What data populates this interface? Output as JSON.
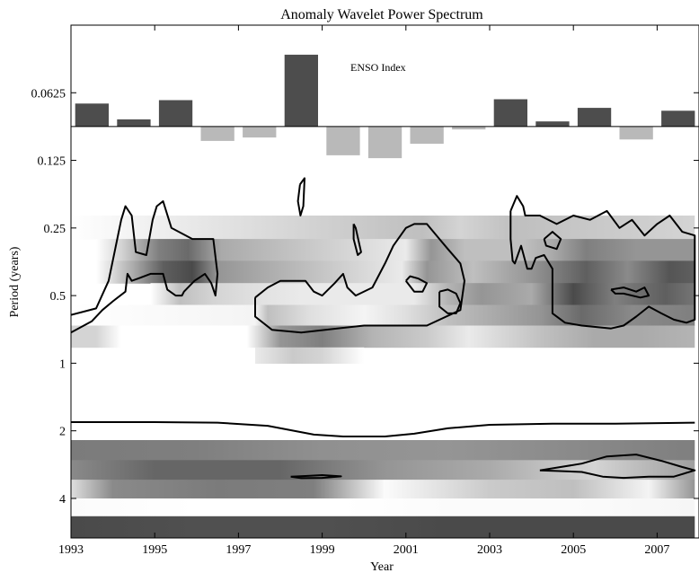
{
  "chart_data": {
    "type": "heatmap",
    "title": "Anomaly Wavelet Power Spectrum",
    "xlabel": "Year",
    "ylabel": "Period (years)",
    "xlim": [
      1993,
      2008
    ],
    "ylim": [
      0.03125,
      6
    ],
    "y_scale": "log2",
    "y_inverted": true,
    "x_ticks": [
      "1993",
      "1995",
      "1997",
      "1999",
      "2001",
      "2003",
      "2005",
      "2007"
    ],
    "x_tick_values": [
      1993,
      1995,
      1997,
      1999,
      2001,
      2003,
      2005,
      2007
    ],
    "y_ticks": [
      "0.0625",
      "0.125",
      "0.25",
      "0.5",
      "1",
      "2",
      "4"
    ],
    "y_tick_values": [
      0.0625,
      0.125,
      0.25,
      0.5,
      1,
      2,
      4
    ],
    "colormap": [
      "#ffffff",
      "#2a2a2a"
    ],
    "inset_bar": {
      "label": "ENSO Index",
      "baseline_period": 0.0884,
      "positive_color": "#4d4d4d",
      "negative_color": "#b9b9b9",
      "years": [
        1993.5,
        1994.5,
        1995.5,
        1996.5,
        1997.5,
        1998.5,
        1999.5,
        2000.5,
        2001.5,
        2002.5,
        2003.5,
        2004.5,
        2005.5,
        2006.5,
        2007.5
      ],
      "values": [
        0.8,
        0.25,
        0.92,
        -0.5,
        -0.38,
        2.5,
        -1.0,
        -1.1,
        -0.6,
        -0.1,
        0.95,
        0.18,
        0.65,
        -0.45,
        0.55
      ]
    },
    "power_bands": [
      {
        "period": [
          0.22,
          0.28
        ],
        "x": [
          1993.0,
          1998.5,
          2001.4,
          2002.3,
          2003.6,
          2007.9
        ],
        "v": [
          0.0,
          0.2,
          0.3,
          0.2,
          0.3,
          0.2
        ]
      },
      {
        "period": [
          0.28,
          0.35
        ],
        "x": [
          1993.6,
          1994.2,
          1995.1,
          1995.8,
          1996.6,
          2001.0,
          2001.6,
          2002.4,
          2003.8,
          2004.5,
          2005.3,
          2006.5,
          2007.9
        ],
        "v": [
          0.0,
          0.2,
          0.6,
          0.7,
          0.4,
          0.1,
          0.5,
          0.3,
          0.3,
          0.4,
          0.6,
          0.5,
          0.5
        ]
      },
      {
        "period": [
          0.35,
          0.44
        ],
        "x": [
          1993.6,
          1994.5,
          1995.2,
          1995.9,
          1996.5,
          2000.9,
          2001.5,
          2002.6,
          2004.0,
          2005.3,
          2006.3,
          2007.3,
          2007.9
        ],
        "v": [
          0.0,
          0.4,
          0.75,
          0.85,
          0.5,
          0.1,
          0.5,
          0.3,
          0.5,
          0.75,
          0.55,
          0.8,
          0.75
        ]
      },
      {
        "period": [
          0.44,
          0.55
        ],
        "x": [
          1994.9,
          1995.6,
          1996.4,
          1997.3,
          1998.5,
          2001.2,
          2002.0,
          2002.8,
          2004.0,
          2005.0,
          2006.0,
          2007.2,
          2007.9
        ],
        "v": [
          0.0,
          0.3,
          0.2,
          0.15,
          0.1,
          0.1,
          0.35,
          0.5,
          0.4,
          0.85,
          0.6,
          0.75,
          0.65
        ]
      },
      {
        "period": [
          0.55,
          0.68
        ],
        "x": [
          1993.0,
          1997.4,
          1997.7,
          1998.7,
          2000.0,
          2001.0,
          2002.0,
          2004.2,
          2005.2,
          2006.4,
          2007.9
        ],
        "v": [
          0.0,
          0.05,
          0.3,
          0.15,
          0.05,
          0.15,
          0.3,
          0.5,
          0.7,
          0.55,
          0.6
        ]
      },
      {
        "period": [
          0.68,
          0.85
        ],
        "x": [
          1993.0,
          1993.6,
          1994.2,
          1997.2,
          1998.0,
          1999.0,
          2000.2,
          2001.5,
          2002.5,
          2004.3,
          2005.5,
          2006.6,
          2007.9
        ],
        "v": [
          0.2,
          0.2,
          0.0,
          0.0,
          0.5,
          0.6,
          0.35,
          0.25,
          0.1,
          0.3,
          0.4,
          0.4,
          0.35
        ]
      },
      {
        "period": [
          0.85,
          1.0
        ],
        "x": [
          1997.4,
          1998.3,
          1999.0,
          2000.0
        ],
        "v": [
          0.1,
          0.25,
          0.2,
          0.0
        ]
      },
      {
        "period": [
          2.2,
          2.7
        ],
        "x": [
          1993.0,
          1996.0,
          1999.0,
          2002.0,
          2005.0,
          2007.9
        ],
        "v": [
          0.62,
          0.6,
          0.52,
          0.5,
          0.55,
          0.6
        ]
      },
      {
        "period": [
          2.7,
          3.3
        ],
        "x": [
          1993.0,
          1995.0,
          1998.0,
          2000.5,
          2003.0,
          2005.5,
          2007.9
        ],
        "v": [
          0.55,
          0.72,
          0.72,
          0.5,
          0.4,
          0.2,
          0.45
        ]
      },
      {
        "period": [
          3.3,
          4.0
        ],
        "x": [
          1993.0,
          1994.0,
          1996.5,
          1998.8,
          2000.5,
          2003.0,
          2005.0,
          2006.8,
          2007.9
        ],
        "v": [
          0.15,
          0.55,
          0.62,
          0.6,
          0.02,
          0.25,
          0.3,
          0.05,
          0.5
        ]
      },
      {
        "period": [
          4.0,
          4.8
        ],
        "x": [
          1993.0,
          1996.0,
          1999.5,
          2002.0,
          2005.0,
          2007.9
        ],
        "v": [
          0.02,
          0.0,
          0.0,
          0.02,
          0.02,
          0.04
        ]
      },
      {
        "period": [
          4.8,
          6.0
        ],
        "x": [
          1993.0,
          1996.0,
          1999.0,
          2002.0,
          2005.0,
          2007.9
        ],
        "v": [
          0.85,
          0.82,
          0.82,
          0.85,
          0.85,
          0.85
        ]
      }
    ],
    "significance_contours": [
      [
        [
          1993.0,
          0.61
        ],
        [
          1993.6,
          0.57
        ],
        [
          1993.9,
          0.43
        ],
        [
          1994.2,
          0.23
        ],
        [
          1994.3,
          0.2
        ],
        [
          1994.45,
          0.22
        ],
        [
          1994.55,
          0.32
        ],
        [
          1994.8,
          0.33
        ],
        [
          1994.95,
          0.23
        ],
        [
          1995.05,
          0.2
        ],
        [
          1995.2,
          0.19
        ],
        [
          1995.4,
          0.25
        ],
        [
          1995.9,
          0.28
        ],
        [
          1996.4,
          0.28
        ],
        [
          1996.5,
          0.4
        ],
        [
          1996.45,
          0.5
        ],
        [
          1996.35,
          0.44
        ],
        [
          1996.2,
          0.4
        ],
        [
          1995.95,
          0.43
        ],
        [
          1995.7,
          0.48
        ],
        [
          1995.65,
          0.5
        ],
        [
          1995.5,
          0.5
        ],
        [
          1995.3,
          0.47
        ],
        [
          1995.2,
          0.4
        ],
        [
          1994.9,
          0.4
        ],
        [
          1994.6,
          0.42
        ],
        [
          1994.45,
          0.43
        ],
        [
          1994.35,
          0.4
        ],
        [
          1994.3,
          0.48
        ],
        [
          1994.0,
          0.53
        ],
        [
          1993.75,
          0.58
        ],
        [
          1993.5,
          0.65
        ],
        [
          1993.0,
          0.73
        ]
      ],
      [
        [
          1998.47,
          0.16
        ],
        [
          1998.58,
          0.15
        ],
        [
          1998.55,
          0.2
        ],
        [
          1998.48,
          0.22
        ],
        [
          1998.42,
          0.19
        ],
        [
          1998.47,
          0.16
        ]
      ],
      [
        [
          1999.75,
          0.24
        ],
        [
          1999.8,
          0.25
        ],
        [
          1999.93,
          0.32
        ],
        [
          1999.85,
          0.33
        ],
        [
          1999.75,
          0.28
        ],
        [
          1999.75,
          0.24
        ]
      ],
      [
        [
          1997.4,
          0.51
        ],
        [
          1997.7,
          0.46
        ],
        [
          1998.0,
          0.43
        ],
        [
          1998.6,
          0.43
        ],
        [
          1998.8,
          0.48
        ],
        [
          1999.0,
          0.5
        ],
        [
          1999.3,
          0.44
        ],
        [
          1999.5,
          0.4
        ],
        [
          1999.6,
          0.46
        ],
        [
          1999.8,
          0.5
        ],
        [
          2000.2,
          0.46
        ],
        [
          2000.5,
          0.36
        ],
        [
          2000.7,
          0.3
        ],
        [
          2001.0,
          0.25
        ],
        [
          2001.2,
          0.24
        ],
        [
          2001.5,
          0.24
        ],
        [
          2001.8,
          0.28
        ],
        [
          2002.0,
          0.31
        ],
        [
          2002.3,
          0.36
        ],
        [
          2002.4,
          0.43
        ],
        [
          2002.3,
          0.58
        ],
        [
          2001.5,
          0.68
        ],
        [
          2000.0,
          0.68
        ],
        [
          1998.5,
          0.73
        ],
        [
          1997.8,
          0.71
        ],
        [
          1997.4,
          0.62
        ],
        [
          1997.4,
          0.51
        ]
      ],
      [
        [
          2001.0,
          0.43
        ],
        [
          2001.1,
          0.41
        ],
        [
          2001.3,
          0.42
        ],
        [
          2001.5,
          0.44
        ],
        [
          2001.4,
          0.48
        ],
        [
          2001.2,
          0.48
        ],
        [
          2001.0,
          0.43
        ]
      ],
      [
        [
          2001.8,
          0.48
        ],
        [
          2002.0,
          0.47
        ],
        [
          2002.2,
          0.49
        ],
        [
          2002.3,
          0.54
        ],
        [
          2002.2,
          0.6
        ],
        [
          2002.0,
          0.6
        ],
        [
          2001.8,
          0.56
        ],
        [
          2001.8,
          0.48
        ]
      ],
      [
        [
          2003.5,
          0.21
        ],
        [
          2003.65,
          0.18
        ],
        [
          2003.8,
          0.2
        ],
        [
          2003.85,
          0.22
        ],
        [
          2004.2,
          0.22
        ],
        [
          2004.6,
          0.24
        ],
        [
          2005.0,
          0.22
        ],
        [
          2005.4,
          0.23
        ],
        [
          2005.8,
          0.21
        ],
        [
          2006.1,
          0.25
        ],
        [
          2006.4,
          0.23
        ],
        [
          2006.7,
          0.27
        ],
        [
          2007.0,
          0.24
        ],
        [
          2007.3,
          0.22
        ],
        [
          2007.6,
          0.26
        ],
        [
          2007.9,
          0.27
        ],
        [
          2007.9,
          0.64
        ],
        [
          2007.7,
          0.66
        ],
        [
          2007.4,
          0.64
        ],
        [
          2007.1,
          0.6
        ],
        [
          2006.8,
          0.56
        ],
        [
          2006.5,
          0.62
        ],
        [
          2006.2,
          0.68
        ],
        [
          2005.9,
          0.7
        ],
        [
          2005.2,
          0.68
        ],
        [
          2004.8,
          0.66
        ],
        [
          2004.5,
          0.6
        ],
        [
          2004.5,
          0.38
        ],
        [
          2004.3,
          0.33
        ],
        [
          2004.1,
          0.34
        ],
        [
          2004.0,
          0.38
        ],
        [
          2003.9,
          0.38
        ],
        [
          2003.75,
          0.3
        ],
        [
          2003.6,
          0.36
        ],
        [
          2003.55,
          0.35
        ],
        [
          2003.5,
          0.28
        ],
        [
          2003.5,
          0.21
        ]
      ],
      [
        [
          2004.3,
          0.28
        ],
        [
          2004.5,
          0.26
        ],
        [
          2004.7,
          0.28
        ],
        [
          2004.6,
          0.31
        ],
        [
          2004.35,
          0.3
        ],
        [
          2004.3,
          0.28
        ]
      ],
      [
        [
          2005.9,
          0.47
        ],
        [
          2006.2,
          0.46
        ],
        [
          2006.5,
          0.48
        ],
        [
          2006.7,
          0.46
        ],
        [
          2006.8,
          0.5
        ],
        [
          2006.6,
          0.51
        ],
        [
          2006.2,
          0.49
        ],
        [
          2006.0,
          0.49
        ],
        [
          2005.9,
          0.47
        ]
      ],
      [
        [
          1993.0,
          1.83
        ],
        [
          1995.0,
          1.83
        ],
        [
          1996.5,
          1.84
        ],
        [
          1997.7,
          1.9
        ],
        [
          1998.8,
          2.08
        ],
        [
          1999.5,
          2.12
        ],
        [
          2000.5,
          2.12
        ],
        [
          2001.2,
          2.06
        ],
        [
          2002.0,
          1.95
        ],
        [
          2003.0,
          1.88
        ],
        [
          2004.5,
          1.86
        ],
        [
          2006.0,
          1.86
        ],
        [
          2007.9,
          1.84
        ]
      ],
      [
        [
          1998.25,
          3.2
        ],
        [
          1998.6,
          3.18
        ],
        [
          1999.0,
          3.15
        ],
        [
          1999.45,
          3.19
        ],
        [
          1999.0,
          3.24
        ],
        [
          1998.5,
          3.25
        ],
        [
          1998.25,
          3.2
        ]
      ],
      [
        [
          2004.2,
          3.0
        ],
        [
          2005.2,
          2.8
        ],
        [
          2005.8,
          2.6
        ],
        [
          2006.5,
          2.55
        ],
        [
          2007.1,
          2.72
        ],
        [
          2007.6,
          2.9
        ],
        [
          2007.9,
          3.0
        ],
        [
          2007.4,
          3.2
        ],
        [
          2006.8,
          3.2
        ],
        [
          2006.2,
          3.24
        ],
        [
          2005.7,
          3.2
        ],
        [
          2005.2,
          3.05
        ],
        [
          2004.6,
          3.02
        ],
        [
          2004.2,
          3.0
        ]
      ]
    ]
  }
}
